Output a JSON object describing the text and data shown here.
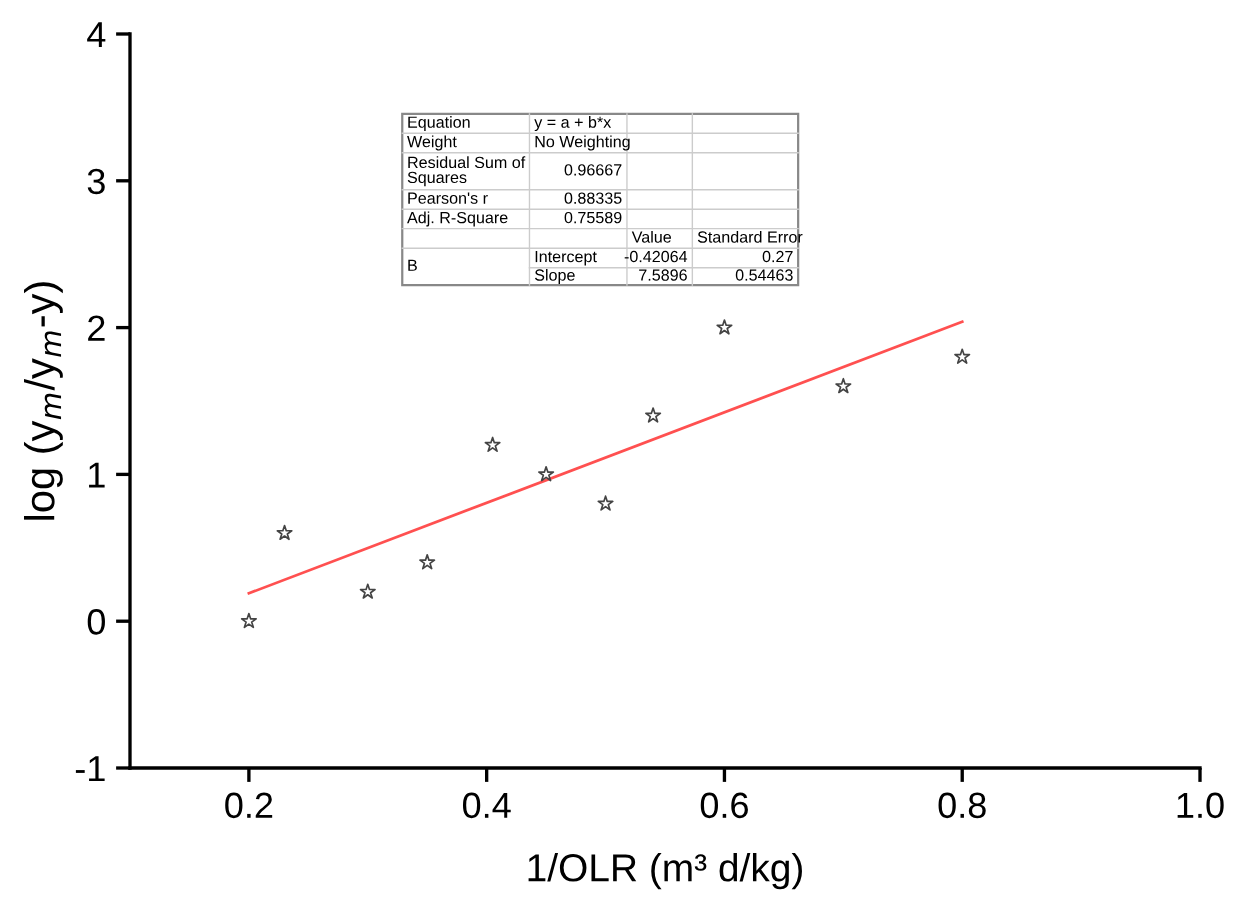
{
  "chart_data": {
    "type": "scatter",
    "xlabel": "1/OLR (m³ d/kg)",
    "ylabel": "log (y$_{m}$/y$_{m}$-y)",
    "xlim": [
      0.1,
      1.0
    ],
    "ylim": [
      -1,
      4
    ],
    "xticks": [
      0.2,
      0.4,
      0.6,
      0.8,
      {
        "value": 1.0,
        "label": "1.0"
      }
    ],
    "yticks": [
      -1,
      0,
      1,
      2,
      3,
      4
    ],
    "grid": false,
    "marker": "star",
    "series": [
      {
        "color": "#444444",
        "x": [
          0.2,
          0.23,
          0.3,
          0.35,
          0.405,
          0.45,
          0.5,
          0.54,
          0.6,
          0.7,
          0.8
        ],
        "values": [
          0,
          0.6,
          0.2,
          0.4,
          1.2,
          1.0,
          0.8,
          1.4,
          2.0,
          1.6,
          1.8
        ]
      },
      {
        "type": "line",
        "color": "#ff5050",
        "line_style": "solid",
        "marker": "none",
        "x": [
          0.2,
          0.8
        ],
        "values": [
          0.19,
          2.04
        ]
      }
    ],
    "annotations": [
      "Equation",
      "y = a + b*x",
      "Weight",
      "No Weighting",
      "Residual Sum of\nSquares",
      "0.96667",
      "Pearson's r",
      "0.88335",
      "Adj. R-Square",
      "0.75589",
      "Value",
      "Standard Error",
      "B",
      "Intercept",
      "-0.42064",
      "0.27",
      "Slope",
      "7.5896",
      "0.54463"
    ]
  }
}
